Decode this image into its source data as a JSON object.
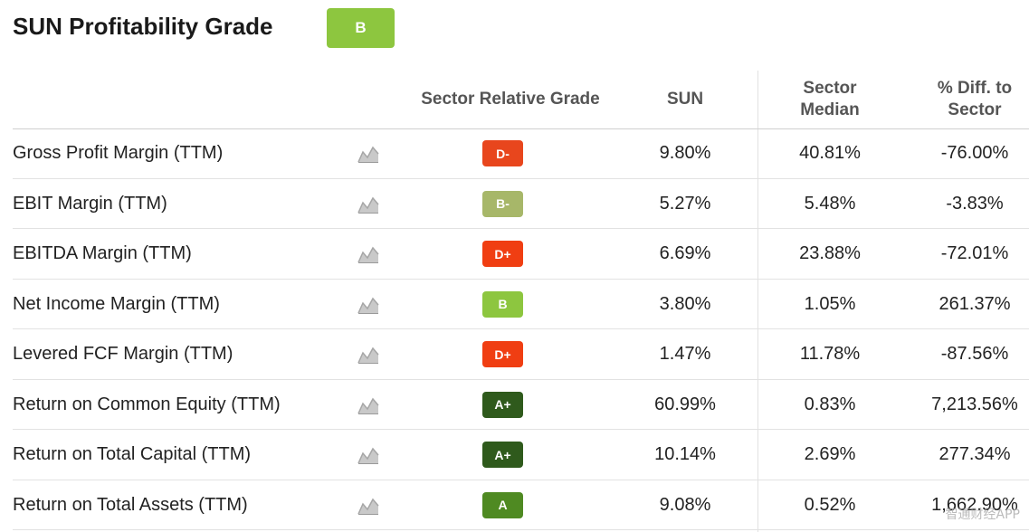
{
  "header": {
    "title": "SUN Profitability Grade",
    "overall_grade": "B",
    "overall_grade_color": "#8dc63f"
  },
  "columns": {
    "grade": "Sector Relative Grade",
    "sun": "SUN",
    "median": "Sector Median",
    "diff": "% Diff. to Sector"
  },
  "icons": {
    "row_chart": "mini-chart-icon"
  },
  "rows": [
    {
      "metric": "Gross Profit Margin (TTM)",
      "grade": "D-",
      "grade_color": "#e8461d",
      "sun": "9.80%",
      "median": "40.81%",
      "diff": "-76.00%"
    },
    {
      "metric": "EBIT Margin (TTM)",
      "grade": "B-",
      "grade_color": "#a7b769",
      "sun": "5.27%",
      "median": "5.48%",
      "diff": "-3.83%"
    },
    {
      "metric": "EBITDA Margin (TTM)",
      "grade": "D+",
      "grade_color": "#f03e12",
      "sun": "6.69%",
      "median": "23.88%",
      "diff": "-72.01%"
    },
    {
      "metric": "Net Income Margin (TTM)",
      "grade": "B",
      "grade_color": "#8dc63f",
      "sun": "3.80%",
      "median": "1.05%",
      "diff": "261.37%"
    },
    {
      "metric": "Levered FCF Margin (TTM)",
      "grade": "D+",
      "grade_color": "#f03e12",
      "sun": "1.47%",
      "median": "11.78%",
      "diff": "-87.56%"
    },
    {
      "metric": "Return on Common Equity (TTM)",
      "grade": "A+",
      "grade_color": "#2f5a1c",
      "sun": "60.99%",
      "median": "0.83%",
      "diff": "7,213.56%"
    },
    {
      "metric": "Return on Total Capital (TTM)",
      "grade": "A+",
      "grade_color": "#2f5a1c",
      "sun": "10.14%",
      "median": "2.69%",
      "diff": "277.34%"
    },
    {
      "metric": "Return on Total Assets (TTM)",
      "grade": "A",
      "grade_color": "#4f8a22",
      "sun": "9.08%",
      "median": "0.52%",
      "diff": "1,662.90%"
    }
  ],
  "watermark": "智通财经APP"
}
